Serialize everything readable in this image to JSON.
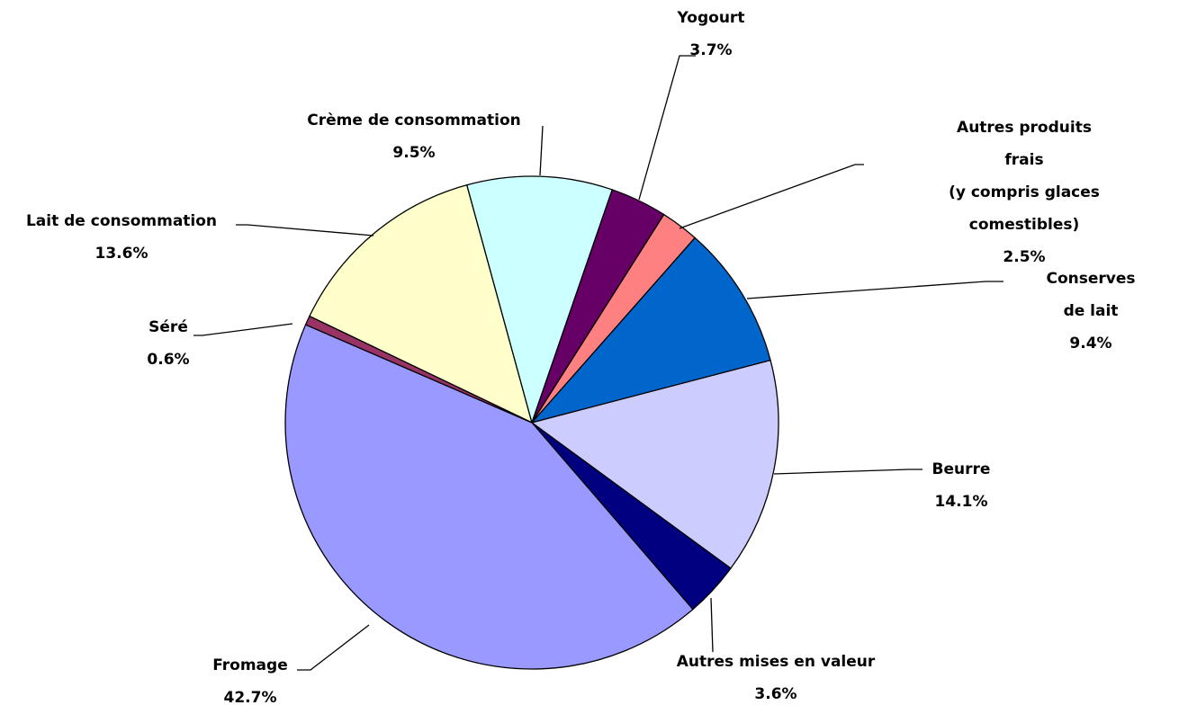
{
  "chart_data": {
    "type": "pie",
    "categories": [
      "Lait de consommation",
      "Crème de consommation",
      "Yogourt",
      "Autres produits frais\n(y compris glaces comestibles)",
      "Conserves de lait",
      "Beurre",
      "Autres mises en valeur",
      "Fromage",
      "Séré"
    ],
    "values": [
      13.6,
      9.5,
      3.7,
      2.5,
      9.4,
      14.1,
      3.6,
      42.7,
      0.6
    ],
    "value_labels": [
      "13.6%",
      "9.5%",
      "3.7%",
      "2.5%",
      "9.4%",
      "14.1%",
      "3.6%",
      "42.7%",
      "0.6%"
    ],
    "colors": [
      "#FFFFCC",
      "#CCFFFF",
      "#660066",
      "#FF8080",
      "#0066CC",
      "#CCCCFF",
      "#000080",
      "#9999FF",
      "#993366"
    ]
  }
}
